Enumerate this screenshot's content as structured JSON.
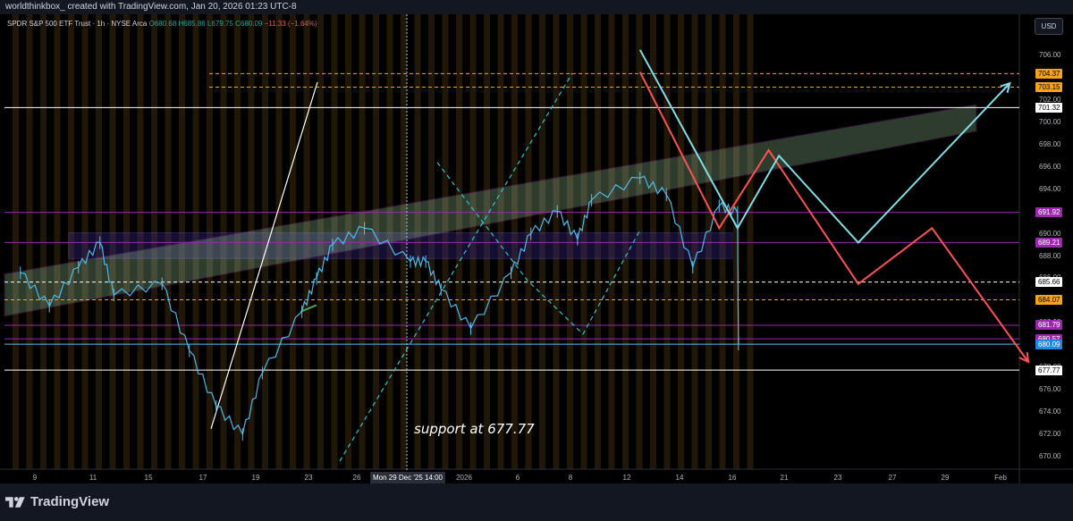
{
  "attribution": "worldthinkbox_ created with TradingView.com, Jan 20, 2026 01:23 UTC-8",
  "symbol": {
    "name": "SPDR S&P 500 ETF Trust · 1h · NYSE Arca",
    "ohlc": "O680.68 H685.86 L679.75 C680.09",
    "change": "−11.33 (−1.64%)"
  },
  "currency_button": "USD",
  "annotation": "support at 677.77",
  "crosshair_date": "Mon 29 Dec '25   14:00",
  "brand": "TradingView",
  "price_axis": {
    "ticks": [
      "706.00",
      "702.00",
      "700.00",
      "698.00",
      "696.00",
      "694.00",
      "692.00",
      "690.00",
      "688.00",
      "686.00",
      "684.00",
      "682.00",
      "680.00",
      "678.00",
      "676.00",
      "674.00",
      "672.00",
      "670.00"
    ],
    "tick_values": [
      706,
      702,
      700,
      698,
      696,
      694,
      692,
      690,
      688,
      686,
      684,
      682,
      680,
      678,
      676,
      674,
      672,
      670
    ]
  },
  "time_axis": {
    "labels": [
      "9",
      "11",
      "15",
      "17",
      "19",
      "23",
      "26",
      "2026",
      "6",
      "8",
      "12",
      "14",
      "16",
      "21",
      "23",
      "27",
      "29",
      "Feb"
    ],
    "label_values": [
      "2025-12-09",
      "2025-12-11",
      "2025-12-15",
      "2025-12-17",
      "2025-12-19",
      "2025-12-23",
      "2025-12-26",
      "2026-01-02",
      "2026-01-06",
      "2026-01-08",
      "2026-01-12",
      "2026-01-14",
      "2026-01-16",
      "2026-01-21",
      "2026-01-23",
      "2026-01-27",
      "2026-01-29",
      "2026-02-01"
    ]
  },
  "levels": [
    {
      "label": "704.37",
      "value": 704.37,
      "style": "dashed",
      "color": "#f7a21b",
      "tag_bg": "#f7a21b",
      "tag_fg": "#000000"
    },
    {
      "label": "703.15",
      "value": 703.15,
      "style": "dashed",
      "color": "#f7a21b",
      "tag_bg": "#f7a21b",
      "tag_fg": "#000000"
    },
    {
      "label": "701.32",
      "value": 701.32,
      "style": "solid",
      "color": "#ffffff",
      "tag_bg": "#ffffff",
      "tag_fg": "#000000"
    },
    {
      "label": "691.92",
      "value": 691.92,
      "style": "solid",
      "color": "#9c27b0",
      "tag_bg": "#9c27b0",
      "tag_fg": "#ffffff"
    },
    {
      "label": "689.21",
      "value": 689.21,
      "style": "solid",
      "color": "#9c27b0",
      "tag_bg": "#9c27b0",
      "tag_fg": "#ffffff"
    },
    {
      "label": "685.66",
      "value": 685.66,
      "style": "dashed",
      "color": "#ffffff",
      "tag_bg": "#ffffff",
      "tag_fg": "#000000"
    },
    {
      "label": "684.07",
      "value": 684.07,
      "style": "dashed",
      "color": "#f7a21b",
      "tag_bg": "#f7a21b",
      "tag_fg": "#000000"
    },
    {
      "label": "681.79",
      "value": 681.79,
      "style": "solid",
      "color": "#9c27b0",
      "tag_bg": "#9c27b0",
      "tag_fg": "#ffffff"
    },
    {
      "label": "680.57",
      "value": 680.57,
      "style": "solid",
      "color": "#9c27b0",
      "tag_bg": "#9c27b0",
      "tag_fg": "#ffffff"
    },
    {
      "label": "680.09",
      "value": 680.09,
      "style": "solid",
      "color": "#4fc3f7",
      "tag_bg": "#1e88e5",
      "tag_fg": "#ffffff"
    },
    {
      "label": "677.77",
      "value": 677.77,
      "style": "solid",
      "color": "#ffffff",
      "tag_bg": "#ffffff",
      "tag_fg": "#000000"
    }
  ],
  "colors": {
    "price_line": "#4fc3f7",
    "up_forecast": "#80deea",
    "down_forecast": "#ff5252",
    "channel_fill": "#a5d6a7",
    "channel_edge": "#9c27b0",
    "session_stripe": "#3d2a10",
    "panel_bg": "#131722"
  },
  "chart_data": {
    "type": "line",
    "x_range": [
      "2025-12-08",
      "2026-02-02"
    ],
    "y_range": [
      669,
      707
    ],
    "series": [
      {
        "values": [
          [
            "2025-12-08",
            686.5
          ],
          [
            "2025-12-09",
            683.5
          ],
          [
            "2025-12-10",
            687.0
          ],
          [
            "2025-12-11",
            689.2
          ],
          [
            "2025-12-12",
            684.5
          ],
          [
            "2025-12-15",
            685.5
          ],
          [
            "2025-12-16",
            679.5
          ],
          [
            "2025-12-17",
            674.5
          ],
          [
            "2025-12-18",
            672.0
          ],
          [
            "2025-12-19",
            677.5
          ],
          [
            "2025-12-22",
            683.0
          ],
          [
            "2025-12-23",
            686.0
          ],
          [
            "2025-12-24",
            689.0
          ],
          [
            "2025-12-26",
            690.5
          ],
          [
            "2025-12-29",
            687.5
          ],
          [
            "2025-12-30",
            687.5
          ],
          [
            "2025-12-31",
            685.0
          ],
          [
            "2026-01-02",
            681.5
          ],
          [
            "2026-01-05",
            686.5
          ],
          [
            "2026-01-06",
            690.0
          ],
          [
            "2026-01-07",
            692.0
          ],
          [
            "2026-01-08",
            689.5
          ],
          [
            "2026-01-09",
            693.0
          ],
          [
            "2026-01-12",
            695.0
          ],
          [
            "2026-01-13",
            693.5
          ],
          [
            "2026-01-14",
            687.0
          ],
          [
            "2026-01-15",
            692.5
          ],
          [
            "2026-01-16",
            691.9
          ],
          [
            "2026-01-16T14",
            680.09
          ]
        ]
      }
    ],
    "forecast_up": [
      [
        "2026-01-12",
        706.5
      ],
      [
        "2026-01-16",
        690.5
      ],
      [
        "2026-01-20",
        697.0
      ],
      [
        "2026-01-24",
        689.2
      ],
      [
        "2026-02-01",
        703.5
      ]
    ],
    "forecast_down": [
      [
        "2026-01-12",
        704.5
      ],
      [
        "2026-01-15",
        690.5
      ],
      [
        "2026-01-19",
        697.5
      ],
      [
        "2026-01-24",
        685.5
      ],
      [
        "2026-01-28",
        690.5
      ],
      [
        "2026-02-02",
        678.5
      ]
    ]
  }
}
